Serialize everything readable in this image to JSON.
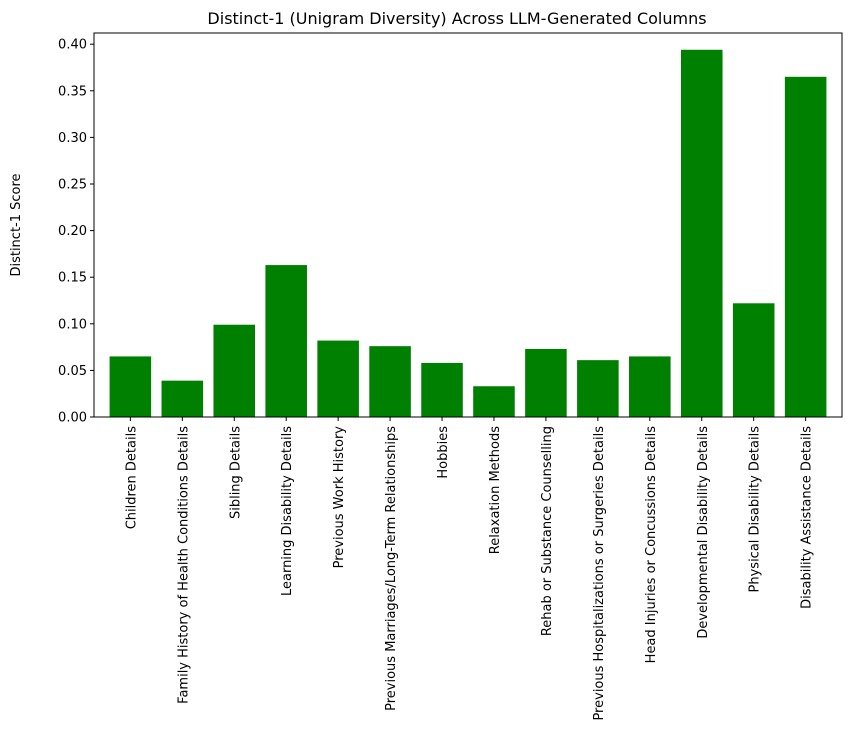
{
  "chart_data": {
    "type": "bar",
    "title": "Distinct-1 (Unigram Diversity) Across LLM-Generated Columns",
    "xlabel": "",
    "ylabel": "Distinct-1 Score",
    "categories": [
      "Children Details",
      "Family History of Health Conditions Details",
      "Sibling Details",
      "Learning Disability Details",
      "Previous Work History",
      "Previous Marriages/Long-Term Relationships",
      "Hobbies",
      "Relaxation Methods",
      "Rehab or Substance Counselling",
      "Previous Hospitalizations or Surgeries Details",
      "Head Injuries or Concussions Details",
      "Developmental Disability Details",
      "Physical Disability Details",
      "Disability Assistance Details"
    ],
    "values": [
      0.065,
      0.039,
      0.099,
      0.163,
      0.082,
      0.076,
      0.058,
      0.033,
      0.073,
      0.061,
      0.065,
      0.394,
      0.122,
      0.365
    ],
    "ylim": [
      0,
      0.412
    ],
    "yticks": [
      "0.00",
      "0.05",
      "0.10",
      "0.15",
      "0.20",
      "0.25",
      "0.30",
      "0.35",
      "0.40"
    ],
    "grid": false,
    "bar_color": "#008000",
    "axis_color": "#000000"
  }
}
